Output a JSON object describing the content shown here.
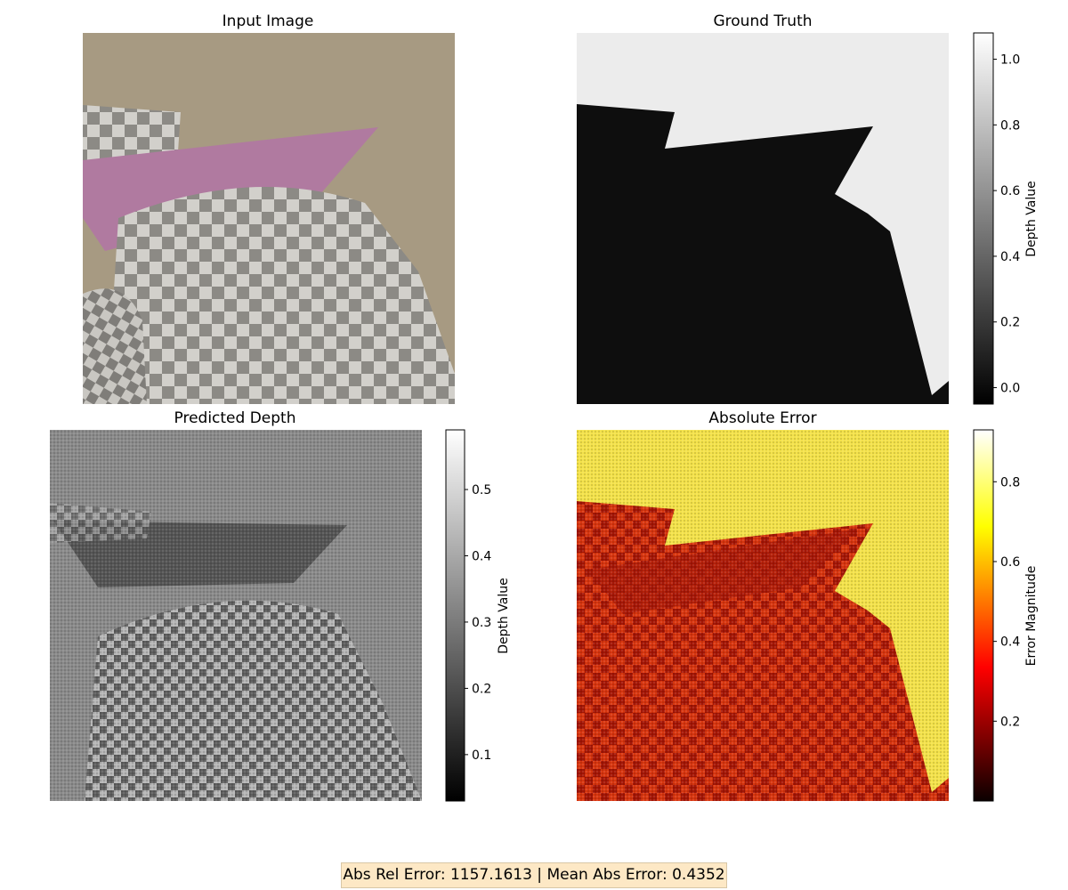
{
  "panels": {
    "input": {
      "title": "Input Image"
    },
    "gt": {
      "title": "Ground Truth",
      "colorbar_label": "Depth Value",
      "ticks": [
        "0.0",
        "0.2",
        "0.4",
        "0.6",
        "0.8",
        "1.0"
      ]
    },
    "pred": {
      "title": "Predicted Depth",
      "colorbar_label": "Depth Value",
      "ticks": [
        "0.1",
        "0.2",
        "0.3",
        "0.4",
        "0.5"
      ]
    },
    "error": {
      "title": "Absolute Error",
      "colorbar_label": "Error Magnitude",
      "ticks": [
        "0.2",
        "0.4",
        "0.6",
        "0.8"
      ]
    }
  },
  "summary": "Abs Rel Error: 1157.1613 | Mean Abs Error: 0.4352",
  "colors": {
    "background": "#a79a82",
    "cone": "#b07aa0",
    "gt_far": "#ececec",
    "gt_near": "#0e0e0e",
    "pred_bg": "#8a8a8a",
    "error_high": "#f4e24a",
    "error_low": "#c01e0a",
    "summary_bg": "#fde8c5"
  },
  "chart_data": [
    {
      "type": "heatmap",
      "title": "Input Image"
    },
    {
      "type": "heatmap",
      "title": "Ground Truth",
      "colormap": "gray",
      "colorbar": {
        "label": "Depth Value",
        "range": [
          -0.05,
          1.08
        ],
        "ticks": [
          0.0,
          0.2,
          0.4,
          0.6,
          0.8,
          1.0
        ]
      }
    },
    {
      "type": "heatmap",
      "title": "Predicted Depth",
      "colormap": "gray",
      "colorbar": {
        "label": "Depth Value",
        "range": [
          0.03,
          0.59
        ],
        "ticks": [
          0.1,
          0.2,
          0.3,
          0.4,
          0.5
        ]
      }
    },
    {
      "type": "heatmap",
      "title": "Absolute Error",
      "colormap": "hot",
      "colorbar": {
        "label": "Error Magnitude",
        "range": [
          0.0,
          0.93
        ],
        "ticks": [
          0.2,
          0.4,
          0.6,
          0.8
        ]
      }
    }
  ]
}
